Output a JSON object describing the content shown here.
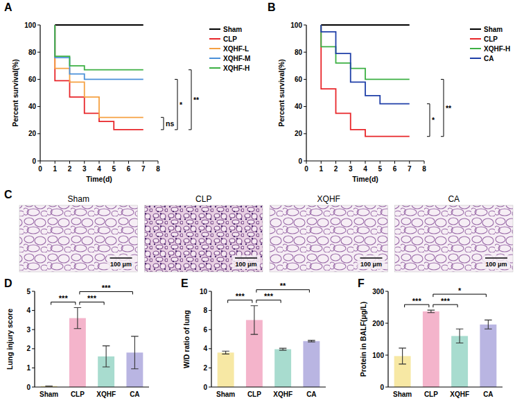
{
  "chart_data": [
    {
      "label": "A",
      "type": "line",
      "line_style": "step",
      "x_label": "Time(d)",
      "y_label": "Percent survival(%)",
      "xlim": [
        0,
        8
      ],
      "xticks": [
        0,
        1,
        2,
        3,
        4,
        5,
        6,
        7,
        8
      ],
      "ylim": [
        0,
        100
      ],
      "yticks": [
        0,
        20,
        40,
        60,
        80,
        100
      ],
      "legend": "right",
      "series": [
        {
          "name": "Sham",
          "color": "#000000",
          "x": [
            1,
            7
          ],
          "values": [
            100,
            100
          ]
        },
        {
          "name": "CLP",
          "color": "#e8262a",
          "x": [
            1,
            1,
            2,
            3,
            4,
            5,
            7
          ],
          "values": [
            100,
            59,
            47,
            35,
            29,
            23,
            23
          ]
        },
        {
          "name": "XQHF-L",
          "color": "#f5a142",
          "x": [
            1,
            1,
            2,
            3,
            4,
            7
          ],
          "values": [
            100,
            68,
            58,
            47,
            32,
            32
          ]
        },
        {
          "name": "XQHF-M",
          "color": "#4a90d9",
          "x": [
            1,
            1,
            2,
            3,
            7
          ],
          "values": [
            100,
            76,
            64,
            60,
            60
          ]
        },
        {
          "name": "XQHF-H",
          "color": "#3cb043",
          "x": [
            1,
            1,
            2,
            3,
            7
          ],
          "values": [
            100,
            77,
            70,
            67,
            67
          ]
        }
      ],
      "annotations": [
        {
          "between": [
            "CLP",
            "XQHF-L"
          ],
          "text": "ns"
        },
        {
          "between": [
            "CLP",
            "XQHF-M"
          ],
          "text": "*"
        },
        {
          "between": [
            "CLP",
            "XQHF-H"
          ],
          "text": "**"
        }
      ]
    },
    {
      "label": "B",
      "type": "line",
      "line_style": "step",
      "x_label": "Time(d)",
      "y_label": "Percent survival(%)",
      "xlim": [
        0,
        8
      ],
      "xticks": [
        0,
        1,
        2,
        3,
        4,
        5,
        6,
        7,
        8
      ],
      "ylim": [
        0,
        100
      ],
      "yticks": [
        0,
        20,
        40,
        60,
        80,
        100
      ],
      "legend": "right",
      "series": [
        {
          "name": "Sham",
          "color": "#000000",
          "x": [
            1,
            7
          ],
          "values": [
            100,
            100
          ]
        },
        {
          "name": "CLP",
          "color": "#e8262a",
          "x": [
            1,
            1,
            2,
            3,
            4,
            7
          ],
          "values": [
            100,
            53,
            35,
            23,
            18,
            18
          ]
        },
        {
          "name": "XQHF-H",
          "color": "#3cb043",
          "x": [
            1,
            1,
            2,
            3,
            4,
            7
          ],
          "values": [
            100,
            84,
            72,
            68,
            60,
            60
          ]
        },
        {
          "name": "CA",
          "color": "#1f3fa8",
          "x": [
            1,
            1,
            2,
            3,
            4,
            5,
            7
          ],
          "values": [
            100,
            95,
            79,
            58,
            48,
            42,
            42
          ]
        }
      ],
      "annotations": [
        {
          "between": [
            "CLP",
            "CA"
          ],
          "text": "*"
        },
        {
          "between": [
            "CLP",
            "XQHF-H"
          ],
          "text": "**"
        }
      ]
    },
    {
      "label": "D",
      "type": "bar",
      "y_label": "Lung injury score",
      "categories": [
        "Sham",
        "CLP",
        "XQHF",
        "CA"
      ],
      "values": [
        0.05,
        3.6,
        1.6,
        1.8
      ],
      "errors": [
        0,
        0.55,
        0.55,
        0.85
      ],
      "colors": [
        "#f7e8a4",
        "#f4b4cb",
        "#a8dccf",
        "#b9b5e2"
      ],
      "ylim": [
        0,
        5
      ],
      "yticks": [
        0,
        1,
        2,
        3,
        4,
        5
      ],
      "annotations": [
        {
          "between": [
            "Sham",
            "CLP"
          ],
          "text": "***"
        },
        {
          "between": [
            "CLP",
            "XQHF"
          ],
          "text": "***"
        },
        {
          "between": [
            "CLP",
            "CA"
          ],
          "text": "***"
        }
      ]
    },
    {
      "label": "E",
      "type": "bar",
      "y_label": "W/D ratio of lung",
      "categories": [
        "Sham",
        "CLP",
        "XQHF",
        "CA"
      ],
      "values": [
        3.6,
        7.0,
        3.95,
        4.8
      ],
      "errors": [
        0.15,
        1.5,
        0.1,
        0.08
      ],
      "colors": [
        "#f7e8a4",
        "#f4b4cb",
        "#a8dccf",
        "#b9b5e2"
      ],
      "ylim": [
        0,
        10
      ],
      "yticks": [
        0,
        2,
        4,
        6,
        8,
        10
      ],
      "annotations": [
        {
          "between": [
            "Sham",
            "CLP"
          ],
          "text": "***"
        },
        {
          "between": [
            "CLP",
            "XQHF"
          ],
          "text": "***"
        },
        {
          "between": [
            "CLP",
            "CA"
          ],
          "text": "**"
        }
      ]
    },
    {
      "label": "F",
      "type": "bar",
      "y_label": "Protein in BALF(μg/L)",
      "categories": [
        "Sham",
        "CLP",
        "XQHF",
        "CA"
      ],
      "values": [
        97,
        237,
        160,
        196
      ],
      "errors": [
        25,
        4,
        22,
        14
      ],
      "colors": [
        "#f7e8a4",
        "#f4b4cb",
        "#a8dccf",
        "#b9b5e2"
      ],
      "ylim": [
        0,
        300
      ],
      "yticks": [
        0,
        100,
        200,
        300
      ],
      "annotations": [
        {
          "between": [
            "Sham",
            "CLP"
          ],
          "text": "***"
        },
        {
          "between": [
            "CLP",
            "XQHF"
          ],
          "text": "***"
        },
        {
          "between": [
            "CLP",
            "CA"
          ],
          "text": "*"
        }
      ]
    }
  ],
  "image_panel": {
    "label": "C",
    "images": [
      {
        "title": "Sham",
        "scale_bar": "100 μm"
      },
      {
        "title": "CLP",
        "scale_bar": "100 μm"
      },
      {
        "title": "XQHF",
        "scale_bar": "100 μm"
      },
      {
        "title": "CA",
        "scale_bar": "100 μm"
      }
    ]
  }
}
